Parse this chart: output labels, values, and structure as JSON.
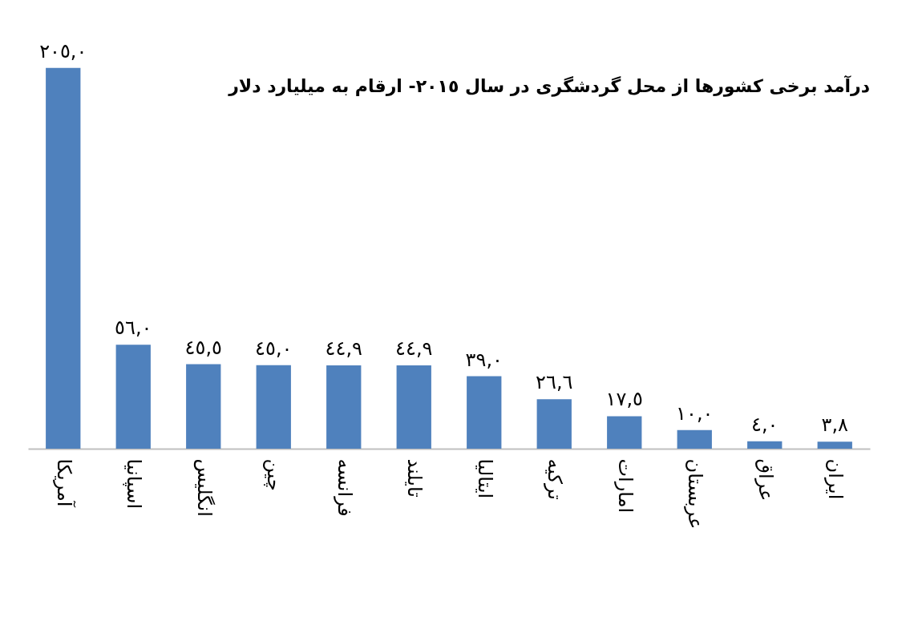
{
  "chart_data": {
    "type": "bar",
    "title": "درآمد برخی کشورها از محل گردشگری در سال ٢٠١٥- ارقام به میلیارد دلار",
    "categories": [
      "آمریکا",
      "اسپانیا",
      "انگلیس",
      "چین",
      "فرانسه",
      "تایلند",
      "ایتالیا",
      "ترکیه",
      "امارات",
      "عربستان",
      "عراق",
      "ایران"
    ],
    "values": [
      205.0,
      56.0,
      45.5,
      45.0,
      44.9,
      44.9,
      39.0,
      26.6,
      17.5,
      10.0,
      4.0,
      3.8
    ],
    "value_labels": [
      "٢٠٥,٠",
      "٥٦,٠",
      "٤٥,٥",
      "٤٥,٠",
      "٤٤,٩",
      "٤٤,٩",
      "٣٩,٠",
      "٢٦,٦",
      "١٧,٥",
      "١٠,٠",
      "٤,٠",
      "٣,٨"
    ],
    "color": "#4f81bd",
    "grid": false
  }
}
